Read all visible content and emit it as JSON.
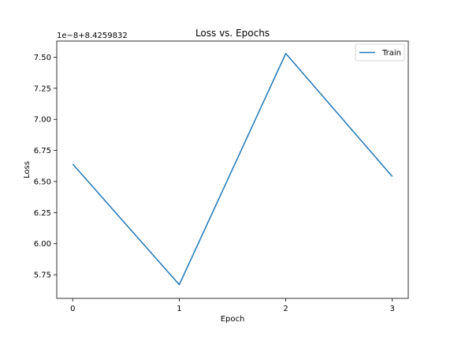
{
  "chart_data": {
    "type": "line",
    "title": "Loss vs. Epochs",
    "xlabel": "Epoch",
    "ylabel": "Loss",
    "offset_label": "1e−8+8.4259832",
    "x": [
      0,
      1,
      2,
      3
    ],
    "xticks": [
      "0",
      "1",
      "2",
      "3"
    ],
    "yticks": [
      "5.75",
      "6.00",
      "6.25",
      "6.50",
      "6.75",
      "7.00",
      "7.25",
      "7.50"
    ],
    "ylim": [
      5.56,
      7.63
    ],
    "xlim": [
      -0.15,
      3.15
    ],
    "series": [
      {
        "name": "Train",
        "values": [
          6.64,
          5.67,
          7.53,
          6.54
        ],
        "color": "#1f77b4"
      }
    ],
    "legend": "top-right",
    "grid": false
  }
}
